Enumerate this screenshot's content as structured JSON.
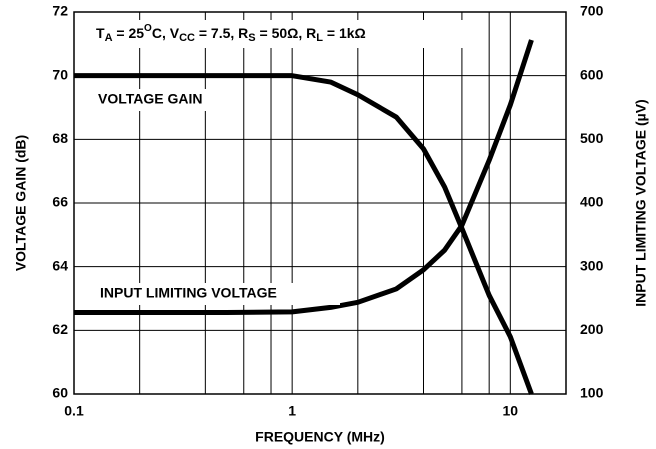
{
  "chart_data": {
    "type": "line",
    "annotation_parts": [
      {
        "text": "T",
        "sub": false
      },
      {
        "text": "A",
        "sub": true
      },
      {
        "text": " = 25",
        "sub": false
      },
      {
        "text": "O",
        "sup": true
      },
      {
        "text": "C, V",
        "sub": false
      },
      {
        "text": "CC",
        "sub": true
      },
      {
        "text": " = 7.5, R",
        "sub": false
      },
      {
        "text": "S",
        "sub": true
      },
      {
        "text": " = 50Ω, R",
        "sub": false
      },
      {
        "text": "L",
        "sub": true
      },
      {
        "text": " = 1kΩ",
        "sub": false
      }
    ],
    "x_label": "FREQUENCY (MHz)",
    "y_label": "VOLTAGE GAIN (dB)",
    "y2_label": "INPUT LIMITING VOLTAGE (µV)",
    "log_x": true,
    "grid": true,
    "xlim": [
      0.1,
      18
    ],
    "xticks": [
      0.1,
      1,
      10
    ],
    "xminor": [
      0.2,
      0.4,
      0.6,
      0.8,
      2,
      4,
      6,
      8
    ],
    "ylim": [
      60,
      72
    ],
    "yticks": [
      60,
      62,
      64,
      66,
      68,
      70,
      72
    ],
    "y2lim": [
      100,
      700
    ],
    "y2ticks": [
      100,
      200,
      300,
      400,
      500,
      600,
      700
    ],
    "series": [
      {
        "name": "VOLTAGE GAIN",
        "color": "#000000",
        "x": [
          0.1,
          0.5,
          1,
          1.5,
          2,
          3,
          4,
          5,
          6,
          8,
          10,
          12.5
        ],
        "values": [
          70,
          70,
          70,
          69.8,
          69.4,
          68.7,
          67.7,
          66.5,
          65.2,
          63.1,
          61.8,
          60
        ]
      },
      {
        "name": "INPUT LIMITING VOLTAGE",
        "color": "#000000",
        "axis": "y2",
        "x": [
          0.1,
          0.5,
          1,
          1.5,
          2,
          3,
          4,
          5,
          6,
          8,
          10,
          12.5
        ],
        "values": [
          228,
          228,
          229,
          236,
          244,
          265,
          295,
          326,
          365,
          467,
          554,
          656
        ]
      }
    ]
  }
}
